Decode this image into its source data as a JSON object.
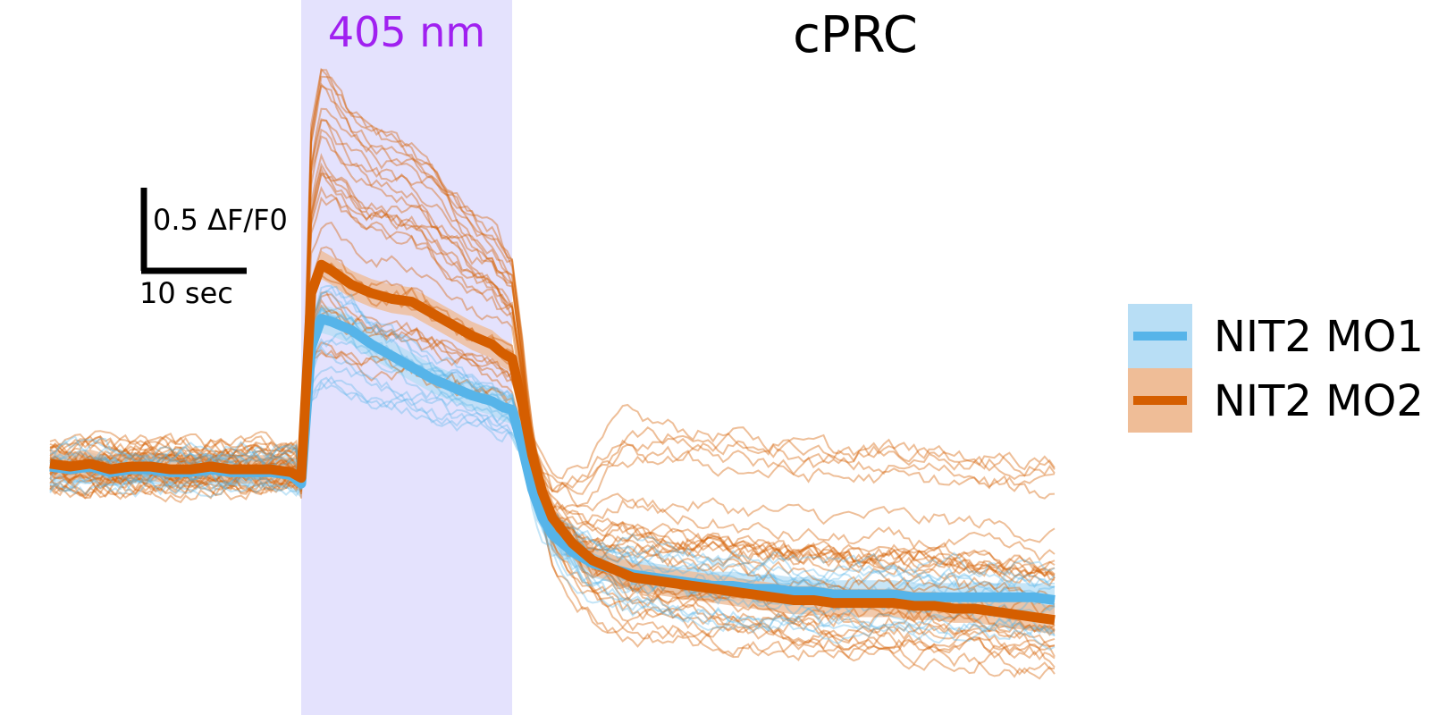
{
  "chart_data": {
    "type": "line",
    "title": "cPRC",
    "xlabel": "",
    "ylabel": "",
    "grid": false,
    "axes_visible": false,
    "xlim": [
      0,
      100
    ],
    "ylim": [
      -1.0,
      3.0
    ],
    "stimulus": {
      "label": "405 nm",
      "start": 25,
      "end": 46,
      "color": "#e4e2fd",
      "label_color": "#a020f0"
    },
    "scale_bar": {
      "y_label": "0.5 ΔF/F0",
      "y_value": 0.5,
      "x_label": "10 sec",
      "x_value": 10
    },
    "legend": {
      "position": "right"
    },
    "series": [
      {
        "name": "NIT2 MO1",
        "color": "#56b4e9",
        "band_color": "#b8def5",
        "x": [
          0,
          2,
          4,
          6,
          8,
          10,
          12,
          14,
          16,
          18,
          20,
          22,
          24,
          25,
          26,
          27,
          28,
          30,
          32,
          34,
          36,
          38,
          40,
          42,
          44,
          45,
          46,
          47,
          48,
          49,
          50,
          52,
          54,
          56,
          58,
          60,
          62,
          64,
          66,
          68,
          70,
          72,
          74,
          76,
          78,
          80,
          82,
          84,
          86,
          88,
          90,
          92,
          94,
          96,
          98,
          100
        ],
        "mean": [
          1.33,
          1.32,
          1.33,
          1.31,
          1.32,
          1.32,
          1.31,
          1.31,
          1.32,
          1.31,
          1.31,
          1.31,
          1.3,
          1.27,
          1.75,
          1.85,
          1.84,
          1.81,
          1.76,
          1.72,
          1.68,
          1.64,
          1.61,
          1.58,
          1.56,
          1.54,
          1.53,
          1.4,
          1.25,
          1.15,
          1.09,
          1.03,
          0.99,
          0.97,
          0.95,
          0.94,
          0.93,
          0.92,
          0.91,
          0.91,
          0.9,
          0.9,
          0.89,
          0.89,
          0.88,
          0.88,
          0.88,
          0.88,
          0.87,
          0.87,
          0.87,
          0.87,
          0.87,
          0.87,
          0.87,
          0.86
        ],
        "sem": 0.05,
        "trace_count": 14
      },
      {
        "name": "NIT2 MO2",
        "color": "#d55e00",
        "band_color": "#efbd97",
        "x": [
          0,
          2,
          4,
          6,
          8,
          10,
          12,
          14,
          16,
          18,
          20,
          22,
          24,
          25,
          26,
          27,
          28,
          30,
          32,
          34,
          36,
          38,
          40,
          42,
          44,
          45,
          46,
          47,
          48,
          49,
          50,
          52,
          54,
          56,
          58,
          60,
          62,
          64,
          66,
          68,
          70,
          72,
          74,
          76,
          78,
          80,
          82,
          84,
          86,
          88,
          90,
          92,
          94,
          96,
          98,
          100
        ],
        "mean": [
          1.34,
          1.33,
          1.34,
          1.32,
          1.33,
          1.33,
          1.32,
          1.32,
          1.33,
          1.32,
          1.32,
          1.32,
          1.31,
          1.29,
          1.94,
          2.04,
          2.02,
          1.97,
          1.94,
          1.92,
          1.91,
          1.87,
          1.83,
          1.79,
          1.76,
          1.73,
          1.71,
          1.55,
          1.37,
          1.24,
          1.15,
          1.06,
          1.0,
          0.97,
          0.94,
          0.93,
          0.92,
          0.91,
          0.9,
          0.89,
          0.88,
          0.87,
          0.86,
          0.86,
          0.85,
          0.85,
          0.85,
          0.85,
          0.84,
          0.84,
          0.83,
          0.83,
          0.82,
          0.81,
          0.8,
          0.79
        ],
        "sem": 0.05,
        "trace_count": 30
      }
    ]
  }
}
